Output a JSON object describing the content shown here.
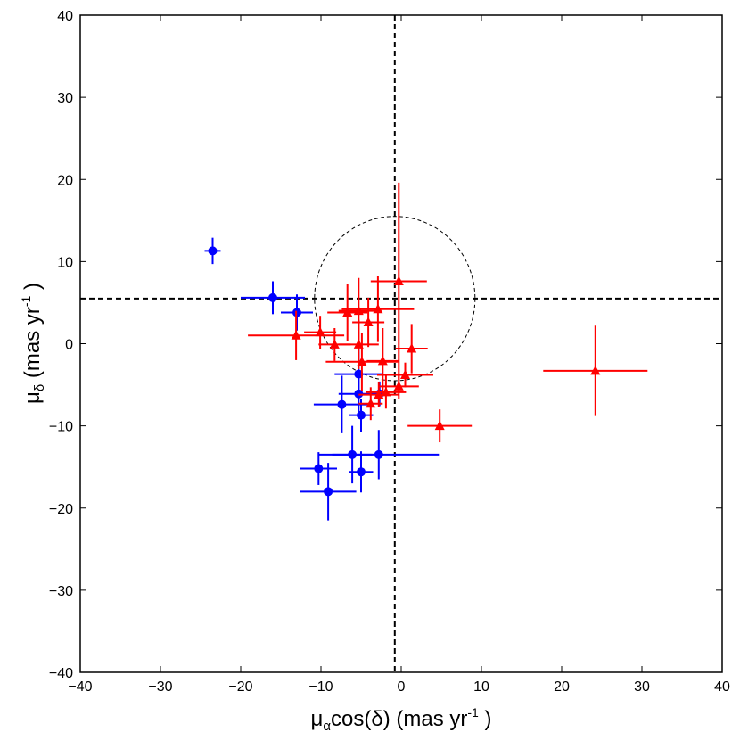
{
  "chart_data": {
    "type": "scatter",
    "title": "",
    "xlabel": {
      "mu": "μ",
      "sub": "α",
      "main": "cos(δ) (mas yr",
      "sup": "-1",
      "close": " )"
    },
    "ylabel": {
      "mu": "μ",
      "sub": "δ",
      "main": " (mas yr",
      "sup": "-1",
      "close": " )"
    },
    "xlim": [
      -40,
      40
    ],
    "ylim": [
      -40,
      40
    ],
    "xticks": [
      -40,
      -30,
      -20,
      -10,
      0,
      10,
      20,
      30,
      40
    ],
    "yticks": [
      -40,
      -30,
      -20,
      -10,
      0,
      10,
      20,
      30,
      40
    ],
    "xtick_labels": [
      "−40",
      "−30",
      "−20",
      "−10",
      "0",
      "10",
      "20",
      "30",
      "40"
    ],
    "ytick_labels": [
      "−40",
      "−30",
      "−20",
      "−10",
      "0",
      "10",
      "20",
      "30",
      "40"
    ],
    "reference_lines": {
      "x": -0.8,
      "y": 5.5
    },
    "circle": {
      "center": [
        -0.8,
        5.5
      ],
      "radius": 10
    },
    "series": [
      {
        "name": "blue",
        "color": "#0000ff",
        "marker": "circle",
        "points": [
          {
            "x": -23.5,
            "y": 11.3,
            "xerr": 1.0,
            "yerr": 1.6
          },
          {
            "x": -16.0,
            "y": 5.6,
            "xerr": 4.0,
            "yerr": 2.0
          },
          {
            "x": -13.0,
            "y": 3.8,
            "xerr": 2.0,
            "yerr": 2.2
          },
          {
            "x": -5.3,
            "y": -3.7,
            "xerr": 3.0,
            "yerr": 3.0
          },
          {
            "x": -5.3,
            "y": -6.1,
            "xerr": 2.5,
            "yerr": 2.5
          },
          {
            "x": -2.7,
            "y": -6.1,
            "xerr": 1.2,
            "yerr": 1.5
          },
          {
            "x": -7.4,
            "y": -7.4,
            "xerr": 3.5,
            "yerr": 3.5
          },
          {
            "x": -5.0,
            "y": -8.7,
            "xerr": 1.5,
            "yerr": 2.0
          },
          {
            "x": -10.3,
            "y": -15.2,
            "xerr": 2.3,
            "yerr": 2.0
          },
          {
            "x": -6.1,
            "y": -13.5,
            "xerr": 2.5,
            "yerr": 3.5
          },
          {
            "x": -2.8,
            "y": -13.5,
            "xerr": 7.5,
            "yerr": 3.0
          },
          {
            "x": -9.1,
            "y": -18.0,
            "xerr": 3.5,
            "yerr": 3.5
          },
          {
            "x": -5.0,
            "y": -15.6,
            "xerr": 1.5,
            "yerr": 2.5
          }
        ]
      },
      {
        "name": "red",
        "color": "#ff0000",
        "marker": "triangle",
        "points": [
          {
            "x": -0.3,
            "y": 7.6,
            "xerr": 3.5,
            "yerr": 12.0
          },
          {
            "x": -13.1,
            "y": 1.0,
            "xerr": 6.0,
            "yerr": 3.0
          },
          {
            "x": -10.1,
            "y": 1.4,
            "xerr": 2.0,
            "yerr": 2.0
          },
          {
            "x": -8.3,
            "y": -0.1,
            "xerr": 2.0,
            "yerr": 2.0
          },
          {
            "x": -6.7,
            "y": 3.8,
            "xerr": 2.5,
            "yerr": 3.5
          },
          {
            "x": -5.3,
            "y": 4.0,
            "xerr": 2.5,
            "yerr": 4.0
          },
          {
            "x": -4.1,
            "y": 2.6,
            "xerr": 2.0,
            "yerr": 3.0
          },
          {
            "x": -2.9,
            "y": 4.2,
            "xerr": 4.5,
            "yerr": 4.0
          },
          {
            "x": -5.3,
            "y": -0.1,
            "xerr": 2.5,
            "yerr": 3.0
          },
          {
            "x": -4.9,
            "y": -2.2,
            "xerr": 4.5,
            "yerr": 3.5
          },
          {
            "x": -2.3,
            "y": -2.1,
            "xerr": 2.0,
            "yerr": 4.0
          },
          {
            "x": 1.3,
            "y": -0.6,
            "xerr": 2.0,
            "yerr": 3.0
          },
          {
            "x": 0.5,
            "y": -3.8,
            "xerr": 3.5,
            "yerr": 1.5
          },
          {
            "x": -0.3,
            "y": -5.2,
            "xerr": 2.5,
            "yerr": 1.5
          },
          {
            "x": -1.9,
            "y": -5.9,
            "xerr": 2.5,
            "yerr": 2.0
          },
          {
            "x": -3.8,
            "y": -7.3,
            "xerr": 1.5,
            "yerr": 2.0
          },
          {
            "x": -2.8,
            "y": -6.2,
            "xerr": 2.5,
            "yerr": 1.5
          },
          {
            "x": 4.8,
            "y": -10.0,
            "xerr": 4.0,
            "yerr": 2.0
          },
          {
            "x": 24.2,
            "y": -3.3,
            "xerr": 6.5,
            "yerr": 5.5
          }
        ]
      }
    ]
  }
}
